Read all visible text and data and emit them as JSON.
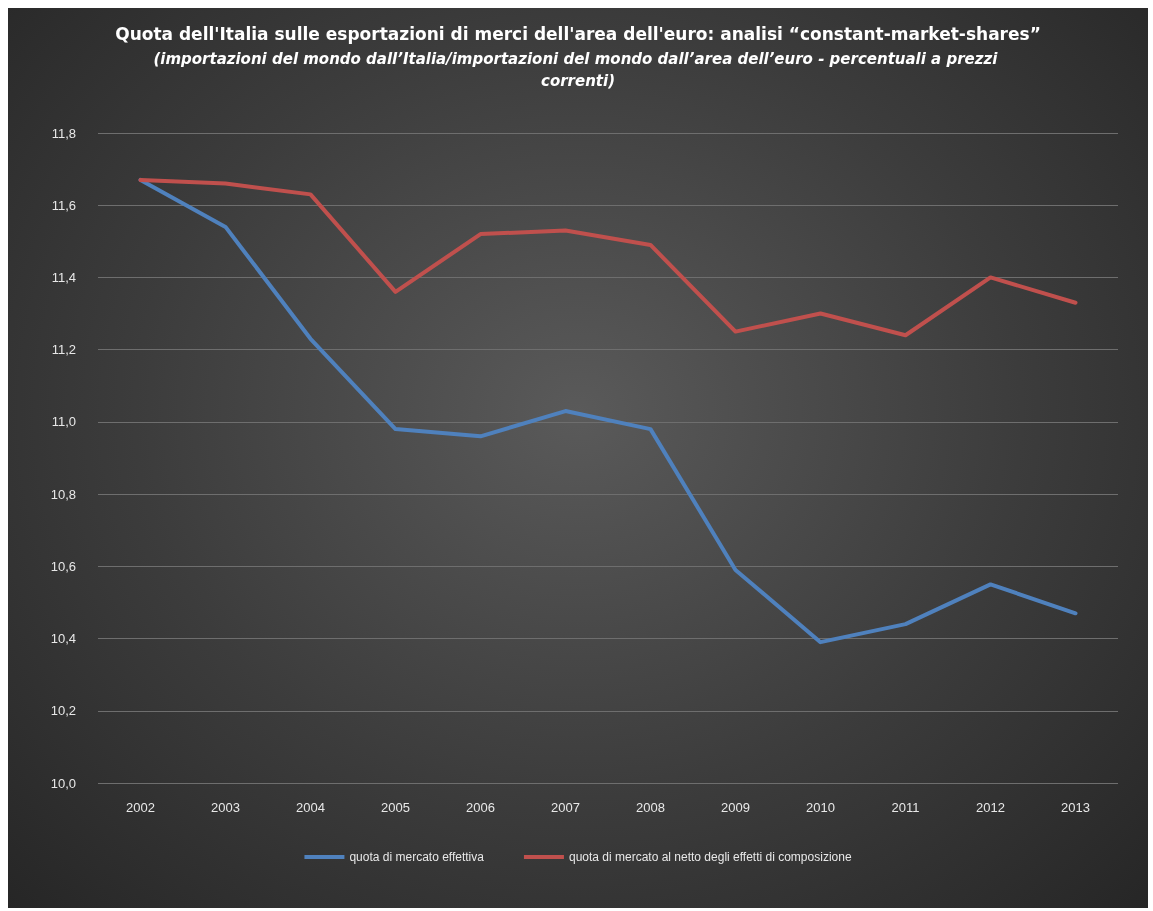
{
  "chart_data": {
    "type": "line",
    "title": "Quota dell'Italia sulle esportazioni di merci dell'area dell'euro: analisi “constant-market-shares”",
    "subtitle": "(importazioni del mondo dall’Italia/importazioni del mondo dall’area dell’euro - percentuali a prezzi correnti)",
    "categories": [
      "2002",
      "2003",
      "2004",
      "2005",
      "2006",
      "2007",
      "2008",
      "2009",
      "2010",
      "2011",
      "2012",
      "2013"
    ],
    "series": [
      {
        "name": "quota di mercato effettiva",
        "color": "#4f81bd",
        "values": [
          11.67,
          11.54,
          11.23,
          10.98,
          10.96,
          11.03,
          10.98,
          10.59,
          10.39,
          10.44,
          10.55,
          10.47
        ]
      },
      {
        "name": "quota di mercato al netto degli effetti di composizione",
        "color": "#c0504d",
        "values": [
          11.67,
          11.66,
          11.63,
          11.36,
          11.52,
          11.53,
          11.49,
          11.25,
          11.3,
          11.24,
          11.4,
          11.33
        ]
      }
    ],
    "ylim": [
      10.0,
      11.8
    ],
    "yticks": [
      {
        "value": 10.0,
        "label": "10,0"
      },
      {
        "value": 10.2,
        "label": "10,2"
      },
      {
        "value": 10.4,
        "label": "10,4"
      },
      {
        "value": 10.6,
        "label": "10,6"
      },
      {
        "value": 10.8,
        "label": "10,8"
      },
      {
        "value": 11.0,
        "label": "11,0"
      },
      {
        "value": 11.2,
        "label": "11,2"
      },
      {
        "value": 11.4,
        "label": "11,4"
      },
      {
        "value": 11.6,
        "label": "11,6"
      },
      {
        "value": 11.8,
        "label": "11,8"
      }
    ],
    "grid": "y",
    "legend": "bottom",
    "marker": "none",
    "line_style": "solid"
  }
}
